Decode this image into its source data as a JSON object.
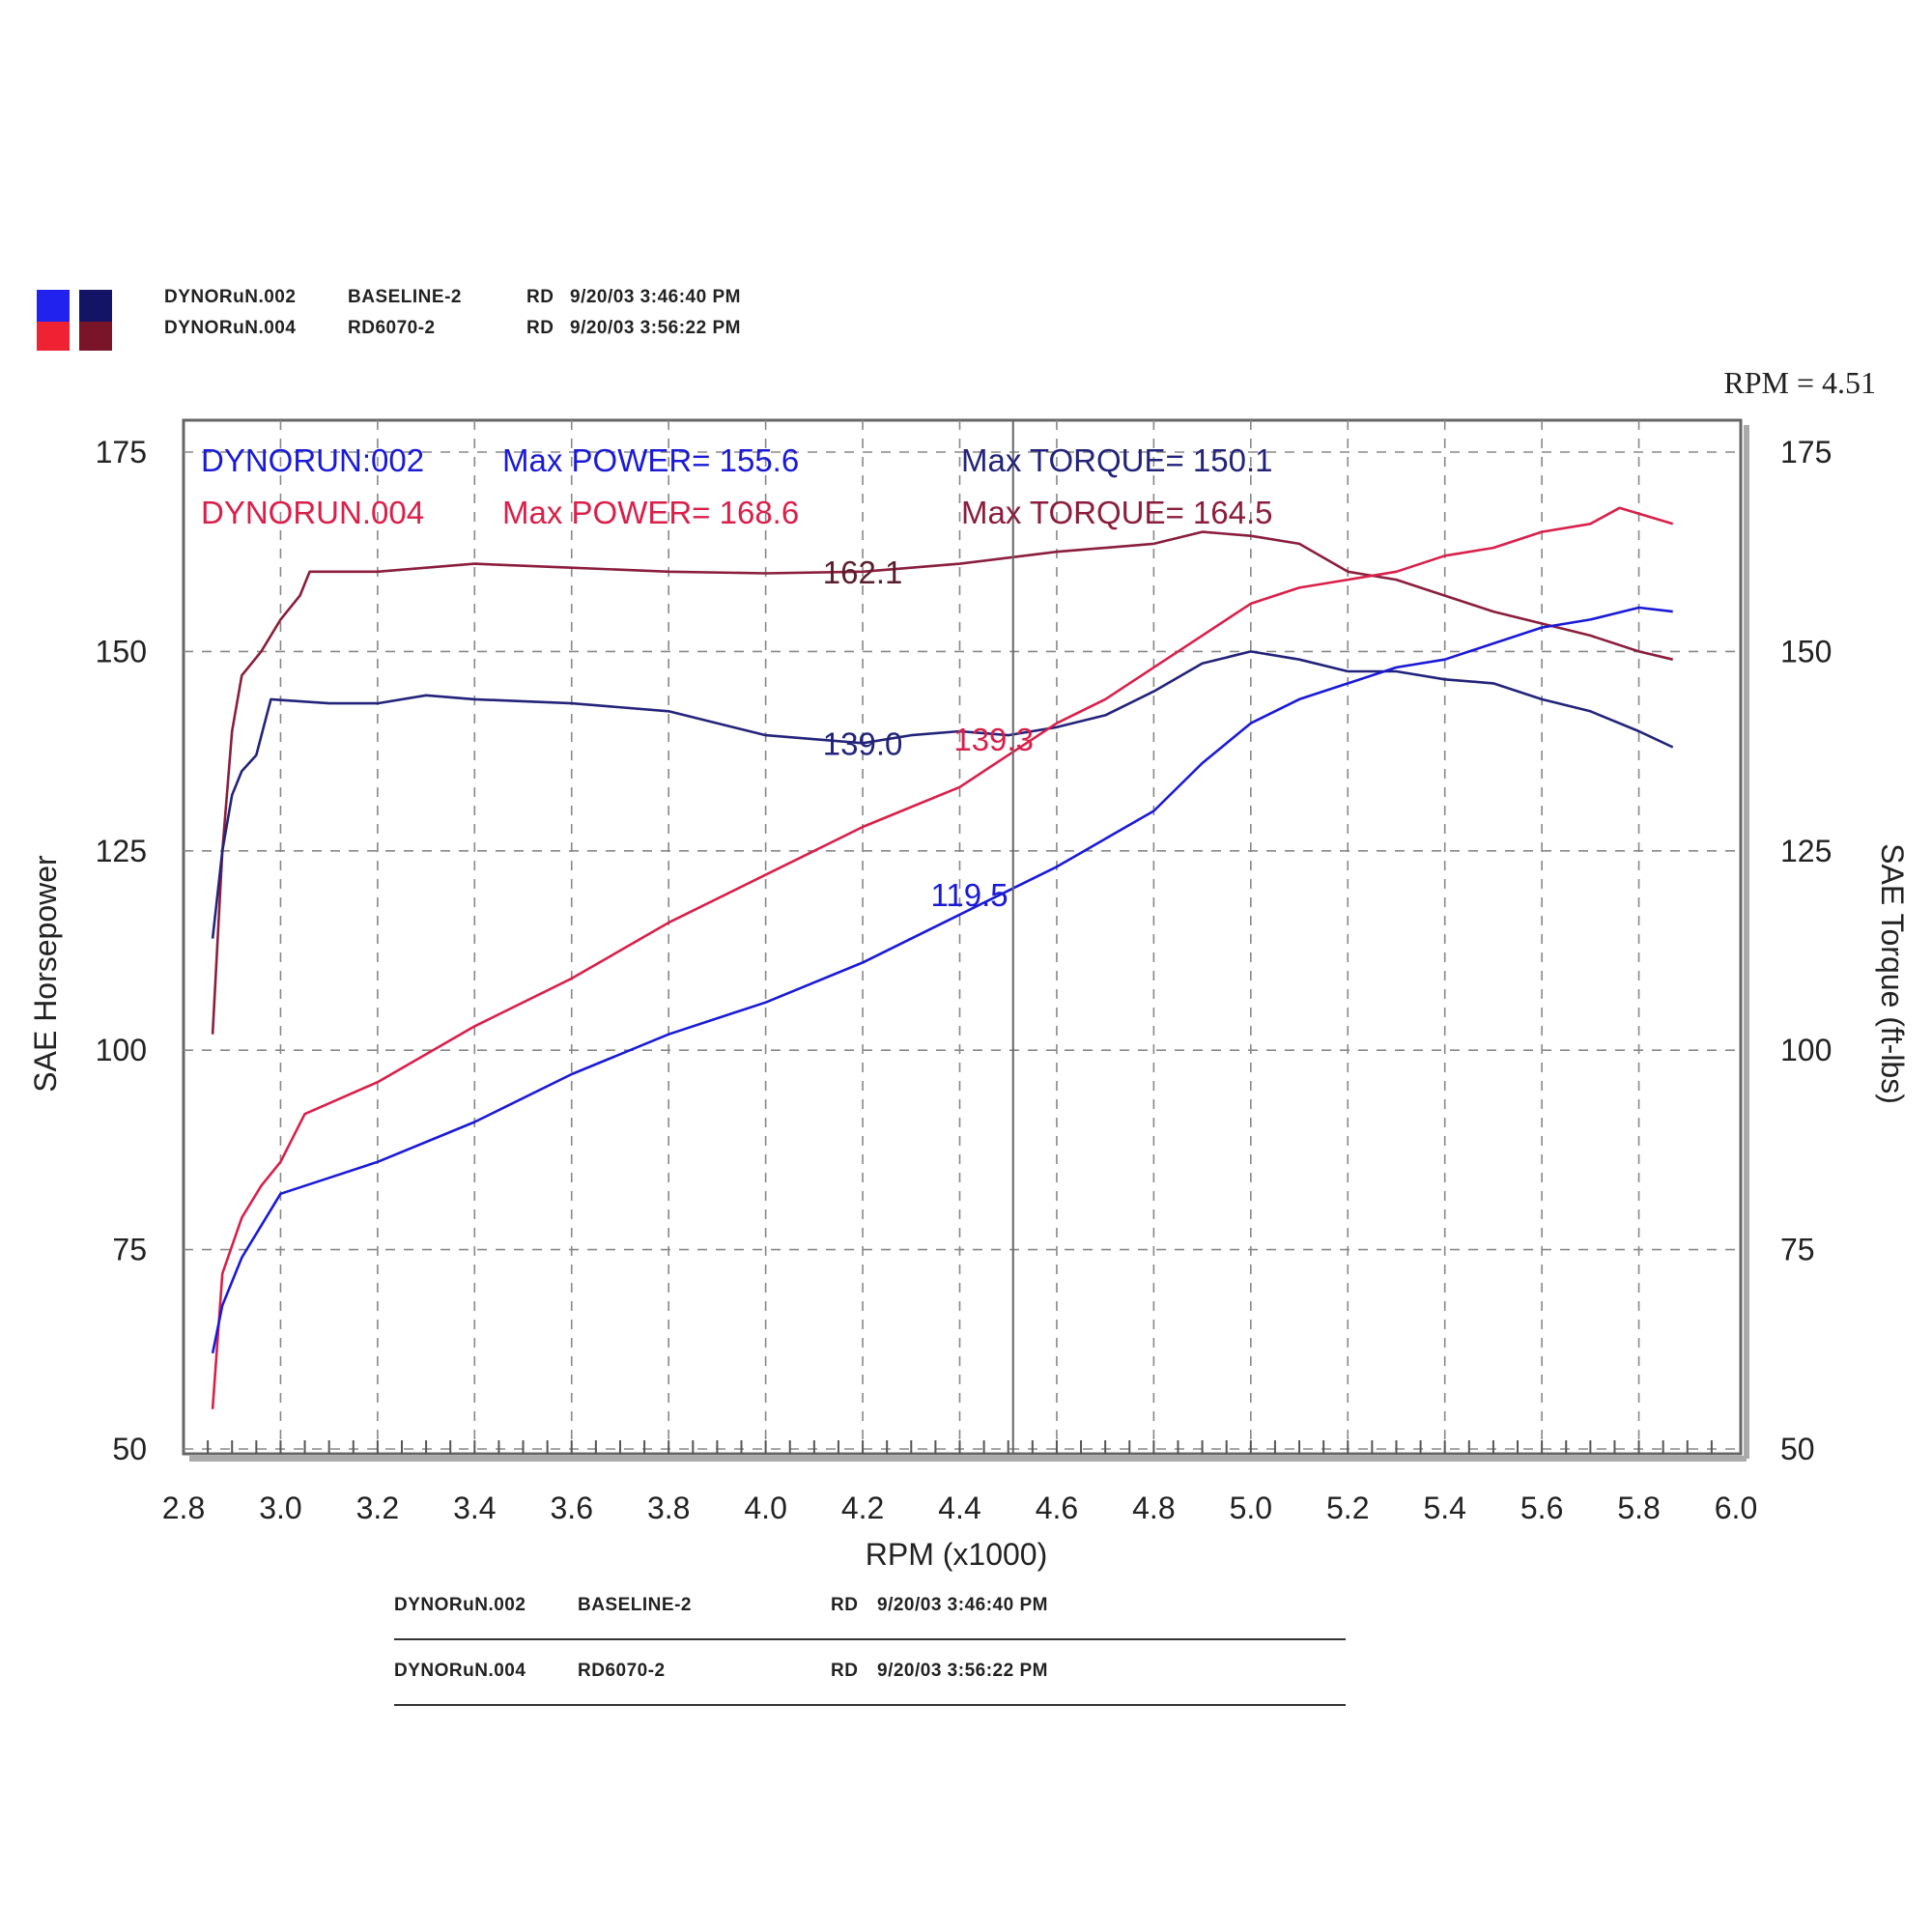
{
  "header": {
    "runs": [
      {
        "file": "DYNORuN.002",
        "name": "BASELINE-2",
        "op": "RD",
        "datetime": "9/20/03 3:46:40 PM",
        "color": "#1a1ad6"
      },
      {
        "file": "DYNORuN.004",
        "name": "RD6070-2",
        "op": "RD",
        "datetime": "9/20/03 3:56:22 PM",
        "color": "#d8204a"
      }
    ]
  },
  "cursor": {
    "label": "RPM = 4.51",
    "rpm": 4.51
  },
  "legend": {
    "run002": {
      "name": "DYNORUN:002",
      "power": "Max POWER= 155.6",
      "torque": "Max TORQUE= 150.1"
    },
    "run004": {
      "name": "DYNORUN.004",
      "power": "Max POWER= 168.6",
      "torque": "Max TORQUE= 164.5"
    }
  },
  "footer": {
    "runs": [
      {
        "file": "DYNORuN.002",
        "name": "BASELINE-2",
        "op": "RD",
        "datetime": "9/20/03 3:46:40 PM"
      },
      {
        "file": "DYNORuN.004",
        "name": "RD6070-2",
        "op": "RD",
        "datetime": "9/20/03 3:56:22 PM"
      }
    ]
  },
  "chart_data": {
    "type": "line",
    "title": "",
    "xlabel": "RPM (x1000)",
    "ylabel": "SAE Horsepower",
    "y2label": "SAE Torque (ft-lbs)",
    "xlim": [
      2.8,
      6.0
    ],
    "ylim": [
      50,
      175
    ],
    "y2lim": [
      50,
      175
    ],
    "xticks": [
      "2.8",
      "3.0",
      "3.2",
      "3.4",
      "3.6",
      "3.8",
      "4.0",
      "4.2",
      "4.4",
      "4.6",
      "4.8",
      "5.0",
      "5.2",
      "5.4",
      "5.6",
      "5.8",
      "6.0"
    ],
    "yticks": [
      "50",
      "75",
      "100",
      "125",
      "150",
      "175"
    ],
    "y2ticks": [
      "50",
      "75",
      "100",
      "125",
      "150",
      "175"
    ],
    "grid": true,
    "series": [
      {
        "name": "DYNORUN.004",
        "measure": "torque",
        "color": "#8a1e3c",
        "points": [
          [
            2.86,
            102
          ],
          [
            2.88,
            125
          ],
          [
            2.9,
            140
          ],
          [
            2.92,
            147
          ],
          [
            2.96,
            150
          ],
          [
            3.0,
            154
          ],
          [
            3.04,
            157
          ],
          [
            3.06,
            160
          ],
          [
            3.2,
            160
          ],
          [
            3.4,
            161
          ],
          [
            3.6,
            160.5
          ],
          [
            3.8,
            160
          ],
          [
            4.0,
            159.8
          ],
          [
            4.2,
            160
          ],
          [
            4.4,
            161
          ],
          [
            4.6,
            162.5
          ],
          [
            4.8,
            163.5
          ],
          [
            4.9,
            165
          ],
          [
            5.0,
            164.5
          ],
          [
            5.1,
            163.5
          ],
          [
            5.2,
            160
          ],
          [
            5.3,
            159
          ],
          [
            5.4,
            157
          ],
          [
            5.5,
            155
          ],
          [
            5.6,
            153.5
          ],
          [
            5.7,
            152
          ],
          [
            5.8,
            150
          ],
          [
            5.87,
            149
          ]
        ]
      },
      {
        "name": "DYNORUN.002",
        "measure": "torque",
        "color": "#23237a",
        "points": [
          [
            2.86,
            114
          ],
          [
            2.88,
            125
          ],
          [
            2.9,
            132
          ],
          [
            2.92,
            135
          ],
          [
            2.95,
            137
          ],
          [
            2.98,
            144
          ],
          [
            3.1,
            143.5
          ],
          [
            3.2,
            143.5
          ],
          [
            3.3,
            144.5
          ],
          [
            3.4,
            144
          ],
          [
            3.6,
            143.5
          ],
          [
            3.8,
            142.5
          ],
          [
            4.0,
            139.5
          ],
          [
            4.1,
            139
          ],
          [
            4.2,
            138.5
          ],
          [
            4.3,
            139.5
          ],
          [
            4.4,
            140
          ],
          [
            4.5,
            139.5
          ],
          [
            4.6,
            140.5
          ],
          [
            4.7,
            142
          ],
          [
            4.8,
            145
          ],
          [
            4.9,
            148.5
          ],
          [
            5.0,
            150
          ],
          [
            5.1,
            149
          ],
          [
            5.2,
            147.5
          ],
          [
            5.3,
            147.5
          ],
          [
            5.4,
            146.5
          ],
          [
            5.5,
            146
          ],
          [
            5.6,
            144
          ],
          [
            5.7,
            142.5
          ],
          [
            5.8,
            140
          ],
          [
            5.87,
            138
          ]
        ]
      },
      {
        "name": "DYNORUN.004",
        "measure": "power",
        "color": "#d8204a",
        "points": [
          [
            2.86,
            55
          ],
          [
            2.88,
            72
          ],
          [
            2.92,
            79
          ],
          [
            2.96,
            83
          ],
          [
            3.0,
            86
          ],
          [
            3.05,
            92
          ],
          [
            3.2,
            96
          ],
          [
            3.4,
            103
          ],
          [
            3.6,
            109
          ],
          [
            3.8,
            116
          ],
          [
            4.0,
            122
          ],
          [
            4.2,
            128
          ],
          [
            4.4,
            133
          ],
          [
            4.5,
            137
          ],
          [
            4.6,
            141
          ],
          [
            4.7,
            144
          ],
          [
            4.8,
            148
          ],
          [
            4.9,
            152
          ],
          [
            5.0,
            156
          ],
          [
            5.1,
            158
          ],
          [
            5.2,
            159
          ],
          [
            5.3,
            160
          ],
          [
            5.4,
            162
          ],
          [
            5.5,
            163
          ],
          [
            5.6,
            165
          ],
          [
            5.7,
            166
          ],
          [
            5.76,
            168
          ],
          [
            5.87,
            166
          ]
        ]
      },
      {
        "name": "DYNORUN.002",
        "measure": "power",
        "color": "#1a1ad6",
        "points": [
          [
            2.86,
            62
          ],
          [
            2.88,
            68
          ],
          [
            2.92,
            74
          ],
          [
            2.96,
            78
          ],
          [
            3.0,
            82
          ],
          [
            3.1,
            84
          ],
          [
            3.2,
            86
          ],
          [
            3.4,
            91
          ],
          [
            3.6,
            97
          ],
          [
            3.8,
            102
          ],
          [
            4.0,
            106
          ],
          [
            4.2,
            111
          ],
          [
            4.4,
            117
          ],
          [
            4.5,
            120
          ],
          [
            4.6,
            123
          ],
          [
            4.8,
            130
          ],
          [
            4.9,
            136
          ],
          [
            5.0,
            141
          ],
          [
            5.1,
            144
          ],
          [
            5.2,
            146
          ],
          [
            5.3,
            148
          ],
          [
            5.4,
            149
          ],
          [
            5.5,
            151
          ],
          [
            5.6,
            153
          ],
          [
            5.7,
            154
          ],
          [
            5.8,
            155.5
          ],
          [
            5.87,
            155
          ]
        ]
      }
    ],
    "annotations": [
      {
        "text": "162.1",
        "x": 4.2,
        "y": 160,
        "color": "#5a1e2e"
      },
      {
        "text": "139.0",
        "x": 4.2,
        "y": 138.5,
        "color": "#23237a"
      },
      {
        "text": "139.3",
        "x": 4.47,
        "y": 139,
        "color": "#d8204a"
      },
      {
        "text": "119.5",
        "x": 4.42,
        "y": 119.5,
        "color": "#1a1ad6"
      }
    ]
  }
}
